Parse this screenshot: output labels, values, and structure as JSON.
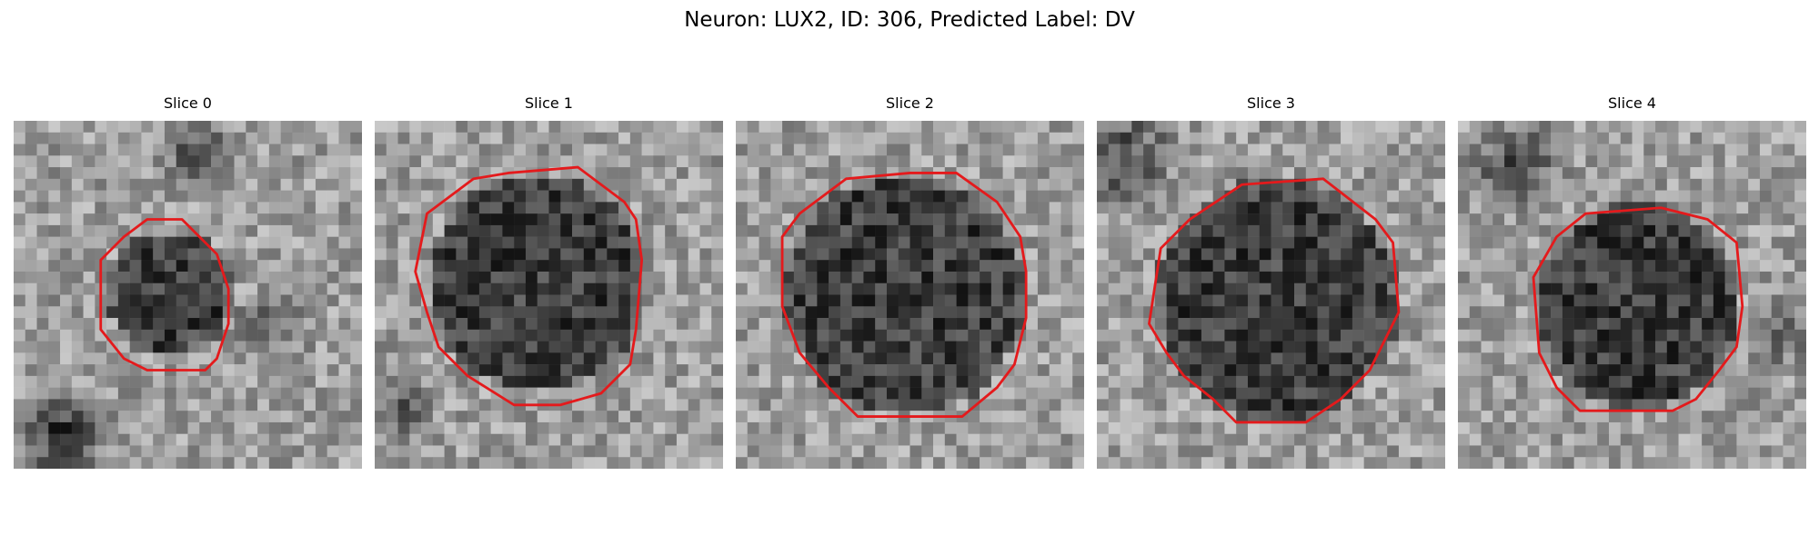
{
  "figure": {
    "title": "Neuron: LUX2, ID: 306, Predicted Label: DV",
    "contour_color": "#e41a1c"
  },
  "slices": [
    {
      "title": "Slice 0"
    },
    {
      "title": "Slice 1"
    },
    {
      "title": "Slice 2"
    },
    {
      "title": "Slice 3"
    },
    {
      "title": "Slice 4"
    }
  ]
}
